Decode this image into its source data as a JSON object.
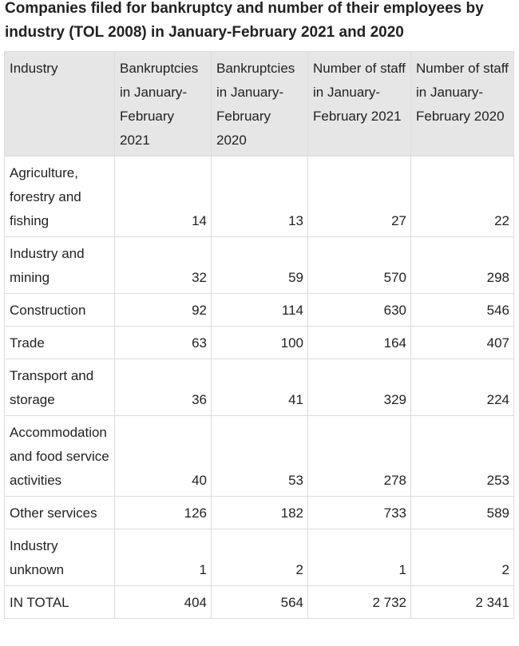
{
  "title": "Companies filed for bankruptcy and number of their employees by industry (TOL 2008) in January-February 2021 and 2020",
  "table": {
    "headers": [
      "Industry",
      "Bankruptcies in January-February 2021",
      "Bankruptcies in January-February 2020",
      "Number of staff in January-February 2021",
      "Number of staff in January-February 2020"
    ],
    "rows": [
      [
        "Agriculture, forestry and fishing",
        "14",
        "13",
        "27",
        "22"
      ],
      [
        "Industry and mining",
        "32",
        "59",
        "570",
        "298"
      ],
      [
        "Construction",
        "92",
        "114",
        "630",
        "546"
      ],
      [
        "Trade",
        "63",
        "100",
        "164",
        "407"
      ],
      [
        "Transport and storage",
        "36",
        "41",
        "329",
        "224"
      ],
      [
        "Accommodation and food service activities",
        "40",
        "53",
        "278",
        "253"
      ],
      [
        "Other services",
        "126",
        "182",
        "733",
        "589"
      ],
      [
        "Industry unknown",
        "1",
        "2",
        "1",
        "2"
      ],
      [
        "IN TOTAL",
        "404",
        "564",
        "2 732",
        "2 341"
      ]
    ]
  }
}
